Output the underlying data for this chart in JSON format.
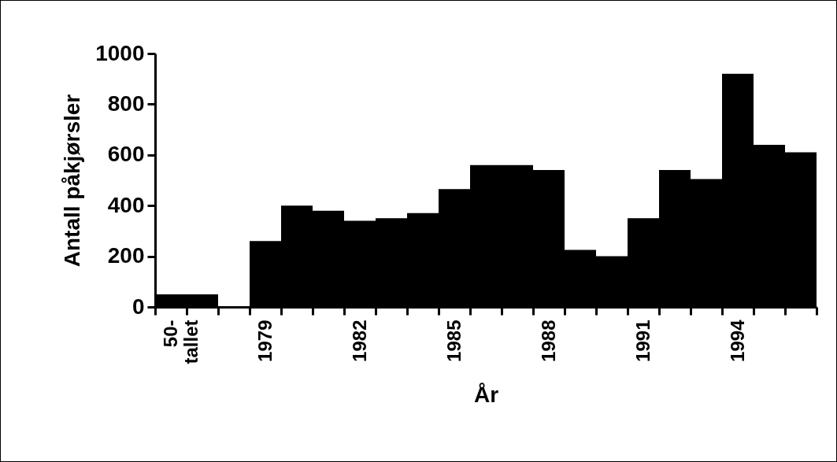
{
  "chart_data": {
    "type": "bar",
    "xlabel": "År",
    "ylabel": "Antall påkjørsler",
    "categories": [
      "50-tallet",
      null,
      null,
      "1979",
      null,
      null,
      "1982",
      null,
      null,
      "1985",
      null,
      null,
      "1988",
      null,
      null,
      "1991",
      null,
      null,
      "1994",
      null,
      null
    ],
    "values": [
      50,
      50,
      null,
      260,
      400,
      380,
      340,
      350,
      370,
      465,
      560,
      560,
      540,
      225,
      200,
      350,
      540,
      505,
      920,
      640,
      610
    ],
    "color": "#000000",
    "ylim": [
      0,
      1000
    ],
    "yticks": [
      0,
      200,
      400,
      600,
      800,
      1000
    ],
    "grid": false
  }
}
